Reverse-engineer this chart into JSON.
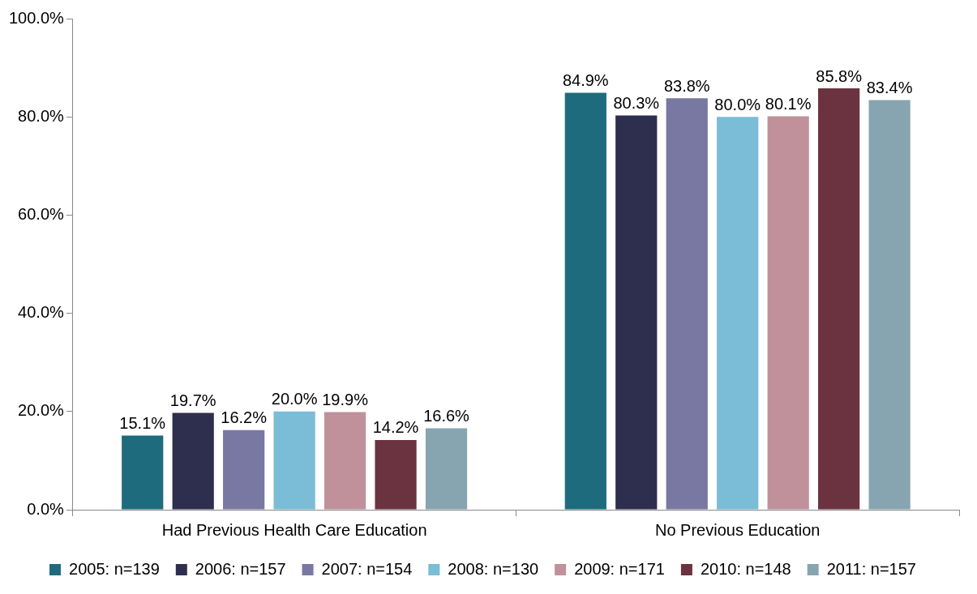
{
  "chart_data": {
    "type": "bar",
    "categories": [
      "Had Previous Health Care Education",
      "No Previous Education"
    ],
    "series": [
      {
        "name": "2005: n=139",
        "color": "#1f6b7e",
        "values": [
          15.1,
          84.9
        ],
        "value_labels": [
          "15.1%",
          "84.9%"
        ]
      },
      {
        "name": "2006: n=157",
        "color": "#2e2f4f",
        "values": [
          19.7,
          80.3
        ],
        "value_labels": [
          "19.7%",
          "80.3%"
        ]
      },
      {
        "name": "2007: n=154",
        "color": "#7878a2",
        "values": [
          16.2,
          83.8
        ],
        "value_labels": [
          "16.2%",
          "83.8%"
        ]
      },
      {
        "name": "2008: n=130",
        "color": "#7bbcd6",
        "values": [
          20.0,
          80.0
        ],
        "value_labels": [
          "20.0%",
          "80.0%"
        ]
      },
      {
        "name": "2009: n=171",
        "color": "#c0919b",
        "values": [
          19.9,
          80.1
        ],
        "value_labels": [
          "19.9%",
          "80.1%"
        ]
      },
      {
        "name": "2010: n=148",
        "color": "#6b3340",
        "values": [
          14.2,
          85.8
        ],
        "value_labels": [
          "14.2%",
          "85.8%"
        ]
      },
      {
        "name": "2011: n=157",
        "color": "#87a5b0",
        "values": [
          16.6,
          83.4
        ],
        "value_labels": [
          "16.6%",
          "83.4%"
        ]
      }
    ],
    "ylim": [
      0,
      100
    ],
    "yticks": [
      {
        "value": 0,
        "label": "0.0%"
      },
      {
        "value": 20,
        "label": "20.0%"
      },
      {
        "value": 40,
        "label": "40.0%"
      },
      {
        "value": 60,
        "label": "60.0%"
      },
      {
        "value": 80,
        "label": "80.0%"
      },
      {
        "value": 100,
        "label": "100.0%"
      }
    ],
    "grid": false,
    "legend": "bottom"
  }
}
